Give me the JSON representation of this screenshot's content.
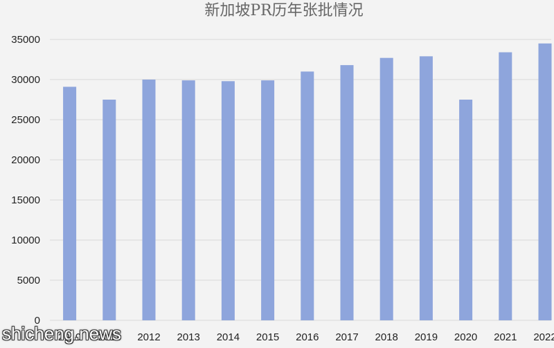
{
  "chart_data": {
    "type": "bar",
    "title": "新加坡PR历年张批情况",
    "xlabel": "",
    "ylabel": "",
    "categories": [
      "2010",
      "2011",
      "2012",
      "2013",
      "2014",
      "2015",
      "2016",
      "2017",
      "2018",
      "2019",
      "2020",
      "2021",
      "2022"
    ],
    "values": [
      29100,
      27500,
      30000,
      29900,
      29800,
      29900,
      31000,
      31800,
      32700,
      32900,
      27500,
      33400,
      34500
    ],
    "ylim": [
      0,
      35000
    ],
    "yticks": [
      0,
      5000,
      10000,
      15000,
      20000,
      25000,
      30000,
      35000
    ],
    "grid": true,
    "legend": "none",
    "colors": {
      "bar": "#8ea5dc",
      "grid": "#d9d9d9",
      "background": "#f3f3f3"
    }
  },
  "watermark": {
    "text": "shicheng.news"
  }
}
